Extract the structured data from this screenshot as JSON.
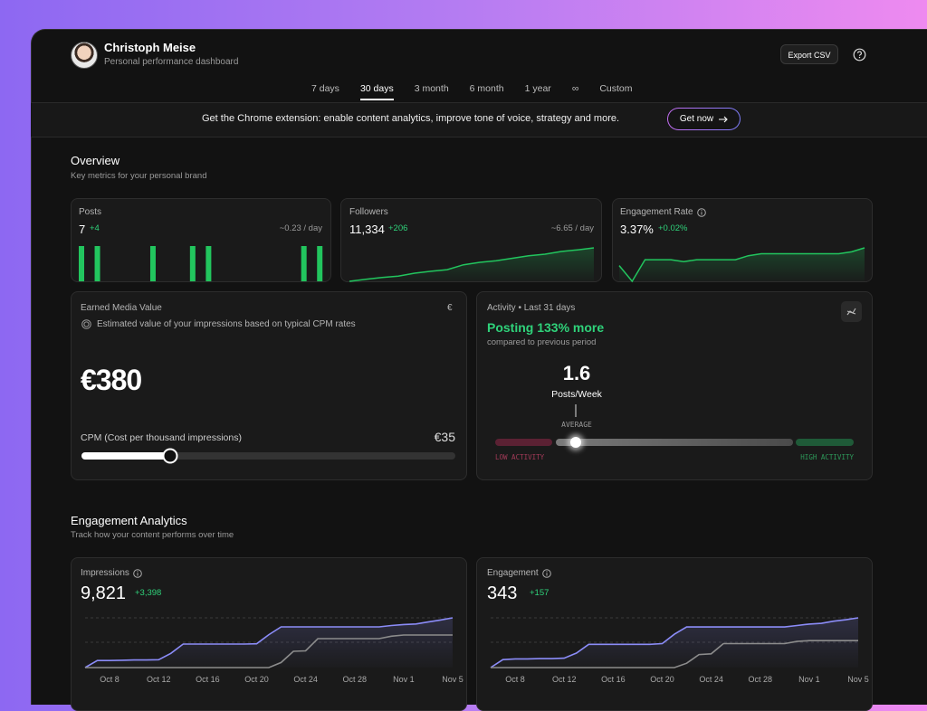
{
  "header": {
    "name": "Christoph Meise",
    "subtitle": "Personal performance dashboard",
    "export": "Export CSV"
  },
  "tabs": {
    "items": [
      "7 days",
      "30 days",
      "3 month",
      "6 month",
      "1 year",
      "∞",
      "Custom"
    ],
    "selected": 1
  },
  "banner": {
    "text": "Get the Chrome extension: enable content analytics, improve tone of voice, strategy and more.",
    "button": "Get now"
  },
  "overview": {
    "title": "Overview",
    "subtitle": "Key metrics for your personal brand",
    "posts": {
      "label": "Posts",
      "value": "7",
      "delta": "+4",
      "rate": "~0.23 / day",
      "chart": {
        "type": "bar",
        "color": "#22c55e",
        "values": [
          1,
          0,
          1,
          0,
          0,
          0,
          0,
          0,
          0,
          1,
          0,
          0,
          0,
          0,
          1,
          0,
          1,
          0,
          0,
          0,
          0,
          0,
          0,
          0,
          0,
          0,
          0,
          0,
          1,
          0,
          1
        ]
      }
    },
    "followers": {
      "label": "Followers",
      "value": "11,334",
      "delta": "+206",
      "rate": "~6.65 / day",
      "chart": {
        "type": "area",
        "color": "#22c55e",
        "values": [
          11128,
          11140,
          11152,
          11160,
          11178,
          11190,
          11200,
          11230,
          11245,
          11255,
          11270,
          11285,
          11295,
          11312,
          11322,
          11334
        ]
      }
    },
    "engagement_rate": {
      "label": "Engagement Rate",
      "value": "3.37%",
      "delta": "+0.02%",
      "chart": {
        "type": "area",
        "color": "#22c55e",
        "values": [
          3.28,
          3.2,
          3.31,
          3.31,
          3.31,
          3.3,
          3.31,
          3.31,
          3.31,
          3.31,
          3.33,
          3.34,
          3.34,
          3.34,
          3.34,
          3.34,
          3.34,
          3.34,
          3.35,
          3.37
        ]
      }
    },
    "earned_media": {
      "label": "Earned Media Value",
      "currency": "€",
      "description": "Estimated value of your impressions based on typical CPM rates",
      "value": "€380",
      "cpm_label": "CPM (Cost per thousand impressions)",
      "cpm_value": "€35"
    },
    "activity": {
      "label": "Activity • Last 31 days",
      "headline": "Posting 133% more",
      "subline": "compared to previous period",
      "value": "1.6",
      "unit": "Posts/Week",
      "marker": "AVERAGE",
      "low": "LOW ACTIVITY",
      "high": "HIGH ACTIVITY"
    }
  },
  "analytics": {
    "title": "Engagement Analytics",
    "subtitle": "Track how your content performs over time",
    "xticks": [
      "Oct 8",
      "Oct 12",
      "Oct 16",
      "Oct 20",
      "Oct 24",
      "Oct 28",
      "Nov 1",
      "Nov 5"
    ],
    "impressions": {
      "label": "Impressions",
      "value": "9,821",
      "delta": "+3,398",
      "chart": {
        "type": "line",
        "series": [
          {
            "color": "#8b8cf8",
            "values": [
              0,
              1400,
              1400,
              1450,
              1500,
              1500,
              1550,
              2800,
              4640,
              4640,
              4640,
              4640,
              4640,
              4640,
              4700,
              6500,
              8036,
              8036,
              8036,
              8036,
              8036,
              8036,
              8036,
              8036,
              8036,
              8300,
              8500,
              8600,
              9000,
              9400,
              9821
            ]
          },
          {
            "color": "#8c8c8c",
            "values": [
              0,
              0,
              0,
              0,
              0,
              0,
              0,
              0,
              0,
              0,
              0,
              0,
              0,
              0,
              0,
              0,
              1000,
              3214,
              3300,
              5714,
              5714,
              5714,
              5714,
              5714,
              5714,
              6200,
              6423,
              6423,
              6423,
              6423,
              6423
            ]
          }
        ]
      }
    },
    "engagement": {
      "label": "Engagement",
      "value": "343",
      "delta": "+157",
      "chart": {
        "type": "line",
        "series": [
          {
            "color": "#8b8cf8",
            "values": [
              0,
              55,
              60,
              60,
              62,
              62,
              65,
              100,
              160,
              160,
              160,
              160,
              160,
              160,
              165,
              230,
              280,
              280,
              280,
              280,
              280,
              280,
              280,
              280,
              280,
              290,
              300,
              305,
              320,
              330,
              343
            ]
          },
          {
            "color": "#8c8c8c",
            "values": [
              0,
              0,
              0,
              0,
              0,
              0,
              0,
              0,
              0,
              0,
              0,
              0,
              0,
              0,
              0,
              0,
              30,
              90,
              95,
              165,
              165,
              165,
              165,
              165,
              165,
              180,
              186,
              186,
              186,
              186,
              186
            ]
          }
        ]
      }
    }
  }
}
